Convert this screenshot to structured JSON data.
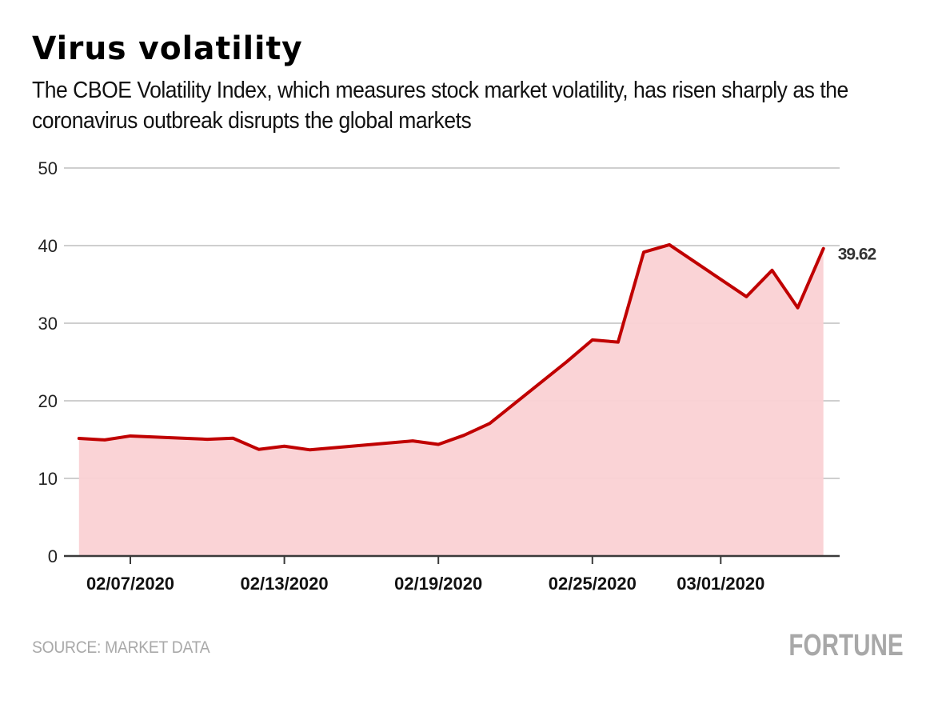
{
  "header": {
    "title": "Virus volatility",
    "subtitle": "The CBOE Volatility Index, which measures stock market volatility, has risen sharply as the coronavirus outbreak disrupts the global markets"
  },
  "footer": {
    "source": "SOURCE: MARKET DATA",
    "brand": "FORTUNE"
  },
  "colors": {
    "line": "#c00000",
    "area": "#fad1d4",
    "grid": "#cfcfcf",
    "axis": "#3a3a3a"
  },
  "chart_data": {
    "type": "area",
    "title": "Virus volatility",
    "subtitle": "The CBOE Volatility Index, which measures stock market volatility, has risen sharply as the coronavirus outbreak disrupts the global markets",
    "xlabel": "",
    "ylabel": "",
    "ylim": [
      0,
      50
    ],
    "yticks": [
      0,
      10,
      20,
      30,
      40,
      50
    ],
    "grid": true,
    "legend": "none",
    "xlim": [
      "02/04/2020",
      "03/06/2020"
    ],
    "xticks": [
      {
        "date": "02/07/2020",
        "label": "02/07/2020"
      },
      {
        "date": "02/13/2020",
        "label": "02/13/2020"
      },
      {
        "date": "02/19/2020",
        "label": "02/19/2020"
      },
      {
        "date": "02/25/2020",
        "label": "02/25/2020"
      },
      {
        "date": "03/01/2020",
        "label": "03/01/2020"
      }
    ],
    "series": [
      {
        "name": "CBOE Volatility Index",
        "end_label": "39.62",
        "points": [
          {
            "date": "02/05/2020",
            "value": 15.15
          },
          {
            "date": "02/06/2020",
            "value": 14.96
          },
          {
            "date": "02/07/2020",
            "value": 15.47
          },
          {
            "date": "02/10/2020",
            "value": 15.04
          },
          {
            "date": "02/11/2020",
            "value": 15.18
          },
          {
            "date": "02/12/2020",
            "value": 13.74
          },
          {
            "date": "02/13/2020",
            "value": 14.15
          },
          {
            "date": "02/14/2020",
            "value": 13.68
          },
          {
            "date": "02/18/2020",
            "value": 14.83
          },
          {
            "date": "02/19/2020",
            "value": 14.38
          },
          {
            "date": "02/20/2020",
            "value": 15.56
          },
          {
            "date": "02/21/2020",
            "value": 17.08
          },
          {
            "date": "02/24/2020",
            "value": 25.03
          },
          {
            "date": "02/25/2020",
            "value": 27.85
          },
          {
            "date": "02/26/2020",
            "value": 27.56
          },
          {
            "date": "02/27/2020",
            "value": 39.16
          },
          {
            "date": "02/28/2020",
            "value": 40.11
          },
          {
            "date": "03/02/2020",
            "value": 33.42
          },
          {
            "date": "03/03/2020",
            "value": 36.82
          },
          {
            "date": "03/04/2020",
            "value": 31.99
          },
          {
            "date": "03/05/2020",
            "value": 39.62
          }
        ]
      }
    ]
  }
}
